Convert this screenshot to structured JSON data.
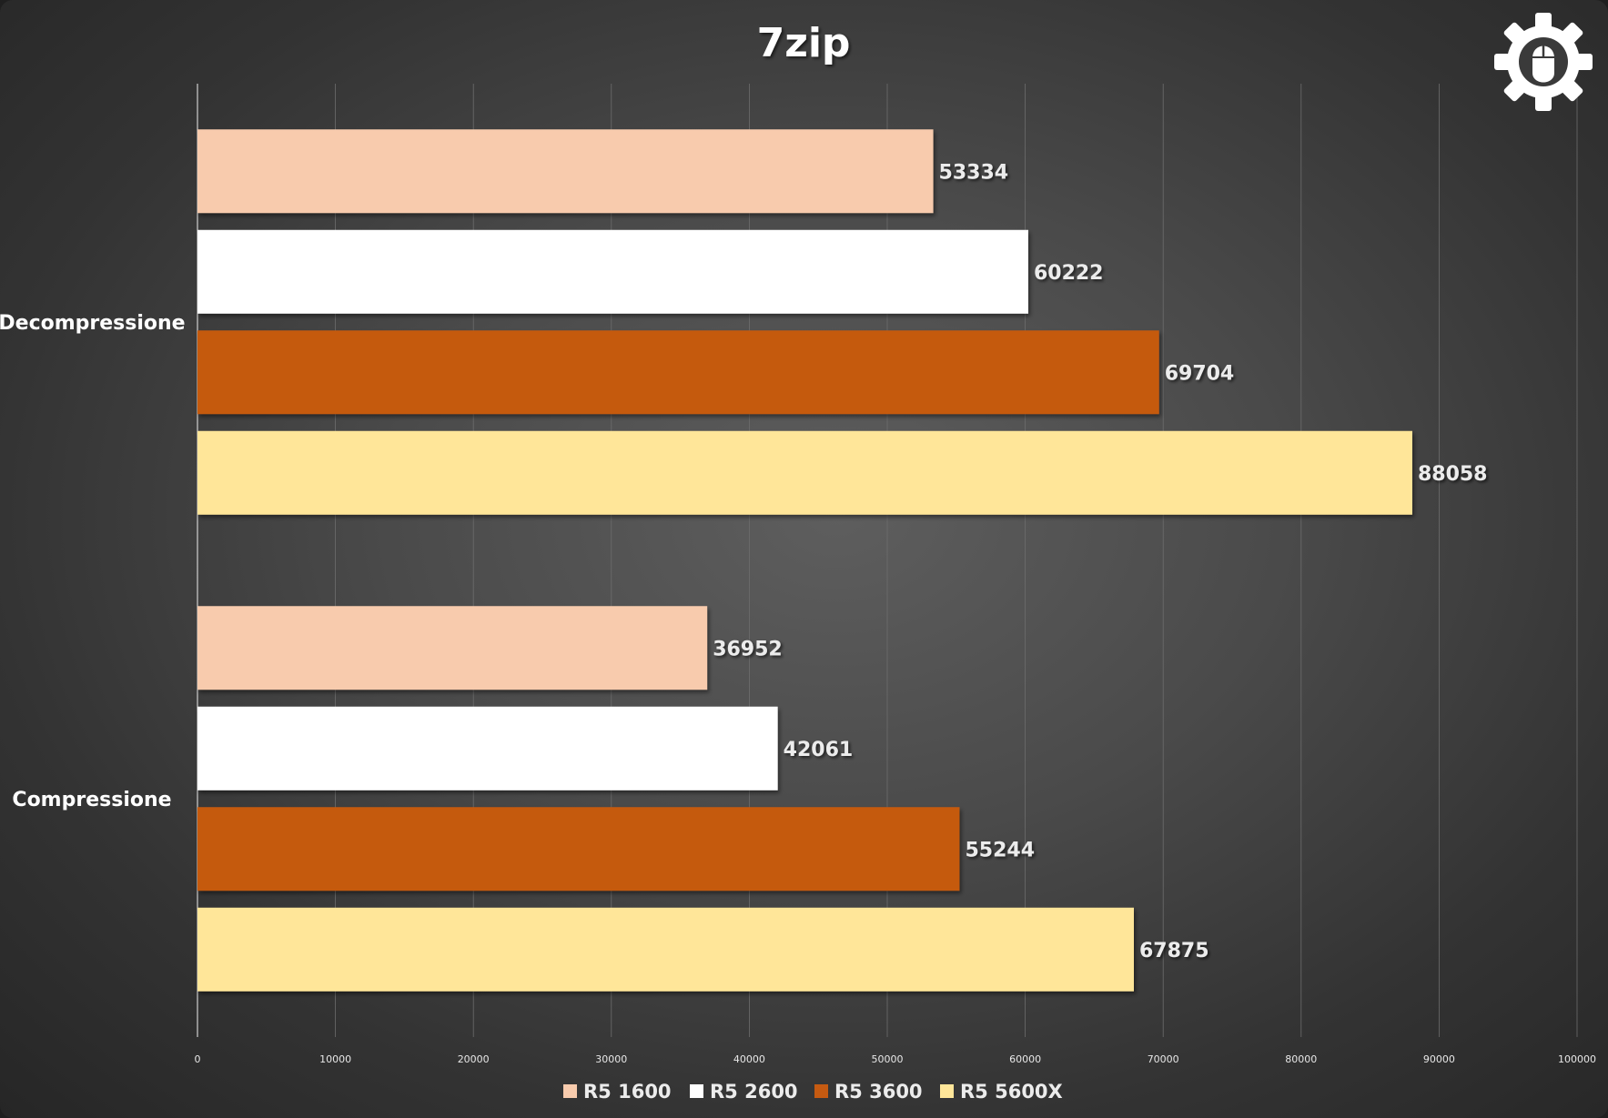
{
  "chart_data": {
    "type": "bar",
    "orientation": "horizontal",
    "title": "7zip",
    "xlabel": "",
    "ylabel": "",
    "categories": [
      "Decompressione",
      "Compressione"
    ],
    "series": [
      {
        "name": "R5 1600",
        "color": "#f8cbad",
        "values": [
          53334,
          36952
        ]
      },
      {
        "name": "R5 2600",
        "color": "#ffffff",
        "values": [
          60222,
          42061
        ]
      },
      {
        "name": "R5 3600",
        "color": "#c55a11",
        "values": [
          69704,
          55244
        ]
      },
      {
        "name": "R5 5600X",
        "color": "#ffe699",
        "values": [
          88058,
          67875
        ]
      }
    ],
    "xlim": [
      0,
      100000
    ],
    "xticks": [
      "0",
      "10000",
      "20000",
      "30000",
      "40000",
      "50000",
      "60000",
      "70000",
      "80000",
      "90000",
      "100000"
    ],
    "grid": true,
    "legend_position": "bottom"
  },
  "logo": {
    "icon": "gear-mouse-icon"
  }
}
